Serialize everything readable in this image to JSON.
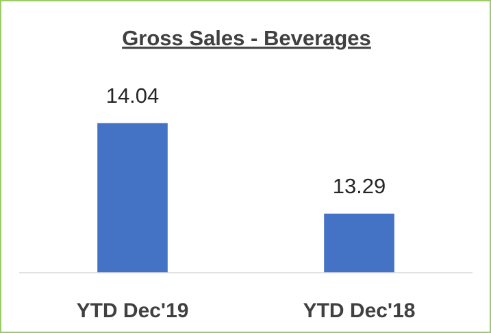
{
  "chart_data": {
    "type": "bar",
    "title": "Gross Sales - Beverages",
    "categories": [
      "YTD Dec'19",
      "YTD Dec'18"
    ],
    "values": [
      14.04,
      13.29
    ],
    "color": "#4472c4",
    "ylim": [
      12.8,
      14.4
    ],
    "grid": false
  }
}
